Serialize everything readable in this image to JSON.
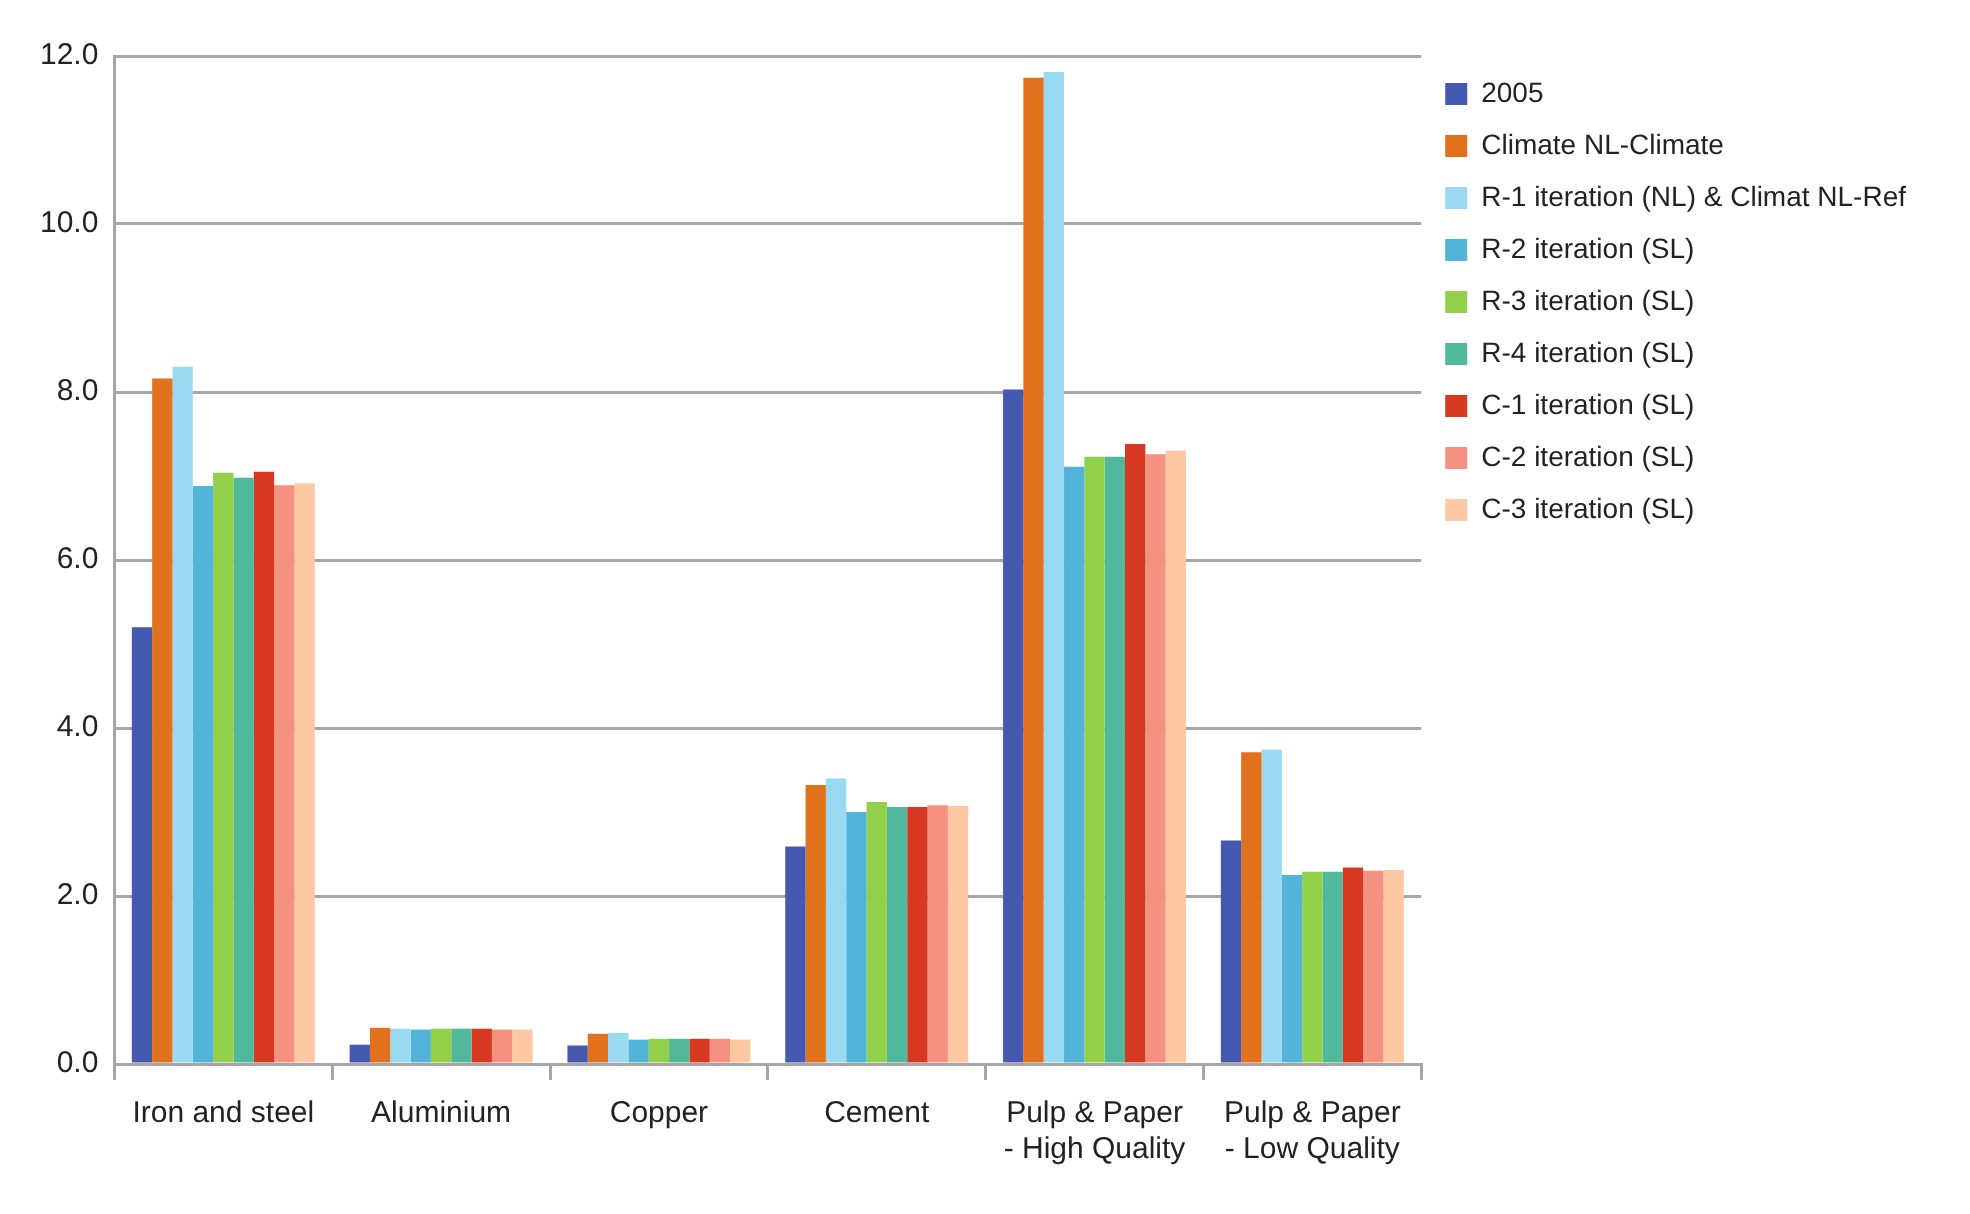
{
  "chart_data": {
    "type": "bar",
    "categories": [
      "Iron and steel",
      "Aluminium",
      "Copper",
      "Cement",
      "Pulp & Paper - High Quality",
      "Pulp & Paper - Low Quality"
    ],
    "series": [
      {
        "name": "2005",
        "color": "#4559b0",
        "values": [
          5.2,
          0.23,
          0.22,
          2.59,
          8.03,
          2.66
        ]
      },
      {
        "name": "Climate NL-Climate",
        "color": "#e2711d",
        "values": [
          8.16,
          0.43,
          0.36,
          3.32,
          11.74,
          3.71
        ]
      },
      {
        "name": "R-1 iteration (NL) & Climat NL-Ref",
        "color": "#99d9f2",
        "values": [
          8.3,
          0.42,
          0.37,
          3.4,
          11.81,
          3.74
        ]
      },
      {
        "name": "R-2 iteration (SL)",
        "color": "#52b4d8",
        "values": [
          6.88,
          0.41,
          0.29,
          3.0,
          7.11,
          2.25
        ]
      },
      {
        "name": "R-3 iteration (SL)",
        "color": "#93d04a",
        "values": [
          7.04,
          0.42,
          0.3,
          3.12,
          7.23,
          2.29
        ]
      },
      {
        "name": "R-4 iteration (SL)",
        "color": "#52b89c",
        "values": [
          6.98,
          0.42,
          0.3,
          3.06,
          7.23,
          2.29
        ]
      },
      {
        "name": "C-1 iteration (SL)",
        "color": "#d63821",
        "values": [
          7.05,
          0.42,
          0.3,
          3.06,
          7.38,
          2.34
        ]
      },
      {
        "name": "C-2 iteration (SL)",
        "color": "#f59180",
        "values": [
          6.89,
          0.41,
          0.3,
          3.08,
          7.26,
          2.3
        ]
      },
      {
        "name": "C-3 iteration (SL)",
        "color": "#fec9a2",
        "values": [
          6.91,
          0.41,
          0.29,
          3.07,
          7.3,
          2.31
        ]
      }
    ],
    "ylim": [
      0,
      12
    ],
    "yticks": [
      {
        "value": 0,
        "label": "0.0"
      },
      {
        "value": 2,
        "label": "2.0"
      },
      {
        "value": 4,
        "label": "4.0"
      },
      {
        "value": 6,
        "label": "6.0"
      },
      {
        "value": 8,
        "label": "8.0"
      },
      {
        "value": 10,
        "label": "10.0"
      },
      {
        "value": 12,
        "label": "12.0"
      }
    ],
    "grid": "y",
    "legend": "right"
  }
}
